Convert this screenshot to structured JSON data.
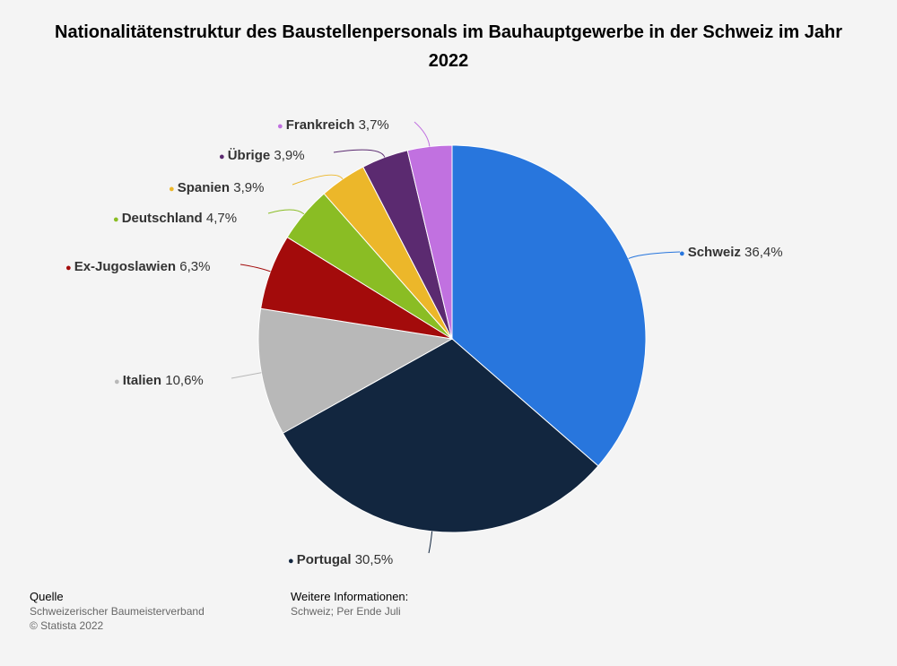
{
  "chart_data": {
    "type": "pie",
    "title": "Nationalitätenstruktur des Baustellenpersonals im Bauhauptgewerbe in der Schweiz im Jahr 2022",
    "slices": [
      {
        "label": "Schweiz",
        "value": 36.4,
        "display": "36,4%",
        "color": "#2876dd"
      },
      {
        "label": "Portugal",
        "value": 30.5,
        "display": "30,5%",
        "color": "#12263f"
      },
      {
        "label": "Italien",
        "value": 10.6,
        "display": "10,6%",
        "color": "#b8b8b8"
      },
      {
        "label": "Ex-Jugoslawien",
        "value": 6.3,
        "display": "6,3%",
        "color": "#a30b0b"
      },
      {
        "label": "Deutschland",
        "value": 4.7,
        "display": "4,7%",
        "color": "#8abd24"
      },
      {
        "label": "Spanien",
        "value": 3.9,
        "display": "3,9%",
        "color": "#ecb72a"
      },
      {
        "label": "Übrige",
        "value": 3.9,
        "display": "3,9%",
        "color": "#5b2a70"
      },
      {
        "label": "Frankreich",
        "value": 3.7,
        "display": "3,7%",
        "color": "#c171e0"
      }
    ]
  },
  "footer": {
    "source_heading": "Quelle",
    "source_name": "Schweizerischer Baumeisterverband",
    "copyright": "© Statista 2022",
    "info_heading": "Weitere Informationen:",
    "info_text": "Schweiz; Per Ende Juli"
  }
}
